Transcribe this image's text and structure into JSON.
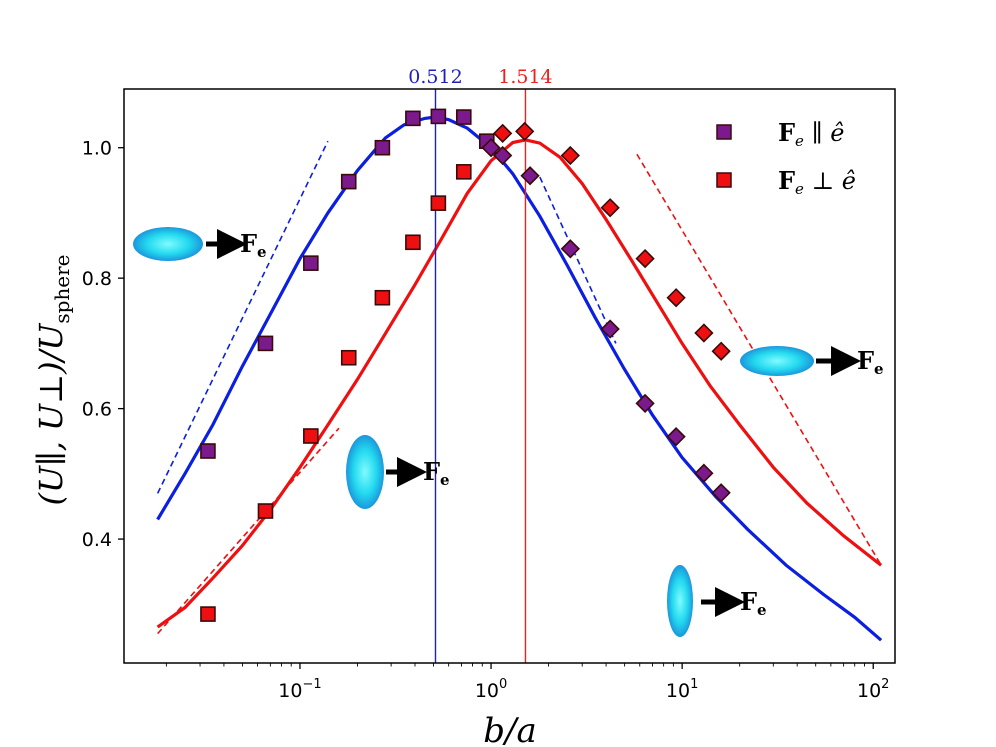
{
  "chart_data": {
    "type": "scatter",
    "x_scale": "log",
    "xlim": [
      0.012,
      130
    ],
    "ylim": [
      0.21,
      1.09
    ],
    "xlabel": "b/a",
    "ylabel": "(U∥, U⊥)/U_sphere",
    "x_ticks": [
      {
        "value": 0.1,
        "base": "10",
        "exp": "−1"
      },
      {
        "value": 1,
        "base": "10",
        "exp": "0"
      },
      {
        "value": 10,
        "base": "10",
        "exp": "1"
      },
      {
        "value": 100,
        "base": "10",
        "exp": "2"
      }
    ],
    "y_ticks": [
      {
        "value": 0.4,
        "label": "0.4"
      },
      {
        "value": 0.6,
        "label": "0.6"
      },
      {
        "value": 0.8,
        "label": "0.8"
      },
      {
        "value": 1.0,
        "label": "1.0"
      }
    ],
    "vlines": [
      {
        "x": 0.512,
        "label": "0.512",
        "color": "#1f1fbf"
      },
      {
        "x": 1.514,
        "label": "1.514",
        "color": "#ee2020"
      }
    ],
    "legend": {
      "position": "top-right",
      "entries": [
        {
          "series": "parallel",
          "label_bold": "F",
          "label_sub": "e",
          "label_rel": "∥",
          "label_vec": "ê"
        },
        {
          "series": "perpendicular",
          "label_bold": "F",
          "label_sub": "e",
          "label_rel": "⊥",
          "label_vec": "ê"
        }
      ]
    },
    "series": [
      {
        "name": "parallel",
        "color": "#0b1fe0",
        "marker_fill": "#7a1a8c",
        "curve": {
          "x": [
            0.018,
            0.025,
            0.035,
            0.05,
            0.07,
            0.1,
            0.14,
            0.2,
            0.28,
            0.35,
            0.45,
            0.512,
            0.6,
            0.75,
            1.0,
            1.3,
            1.8,
            2.5,
            3.5,
            5,
            7,
            10,
            15,
            22,
            35,
            55,
            80,
            110
          ],
          "y": [
            0.43,
            0.5,
            0.575,
            0.665,
            0.745,
            0.83,
            0.9,
            0.965,
            1.015,
            1.035,
            1.045,
            1.047,
            1.043,
            1.03,
            1.0,
            0.96,
            0.895,
            0.82,
            0.74,
            0.66,
            0.59,
            0.525,
            0.465,
            0.415,
            0.36,
            0.315,
            0.28,
            0.245
          ]
        },
        "asymptote_low": {
          "x": [
            0.018,
            0.14
          ],
          "y": [
            0.47,
            1.01
          ]
        },
        "asymptote_high": {
          "x": [
            1.8,
            4.5
          ],
          "y": [
            0.955,
            0.7
          ]
        },
        "points": [
          {
            "marker": "square",
            "x": 0.033,
            "y": 0.535
          },
          {
            "marker": "square",
            "x": 0.066,
            "y": 0.7
          },
          {
            "marker": "square",
            "x": 0.114,
            "y": 0.823
          },
          {
            "marker": "square",
            "x": 0.18,
            "y": 0.948
          },
          {
            "marker": "square",
            "x": 0.27,
            "y": 1.0
          },
          {
            "marker": "square",
            "x": 0.39,
            "y": 1.045
          },
          {
            "marker": "square",
            "x": 0.53,
            "y": 1.048
          },
          {
            "marker": "square",
            "x": 0.72,
            "y": 1.047
          },
          {
            "marker": "square",
            "x": 0.95,
            "y": 1.01
          },
          {
            "marker": "diamond",
            "x": 1.0,
            "y": 1.0
          },
          {
            "marker": "diamond",
            "x": 1.15,
            "y": 0.988
          },
          {
            "marker": "diamond",
            "x": 1.6,
            "y": 0.957
          },
          {
            "marker": "diamond",
            "x": 2.6,
            "y": 0.845
          },
          {
            "marker": "diamond",
            "x": 4.2,
            "y": 0.722
          },
          {
            "marker": "diamond",
            "x": 6.4,
            "y": 0.608
          },
          {
            "marker": "diamond",
            "x": 9.3,
            "y": 0.557
          },
          {
            "marker": "diamond",
            "x": 13,
            "y": 0.501
          },
          {
            "marker": "diamond",
            "x": 16,
            "y": 0.471
          }
        ]
      },
      {
        "name": "perpendicular",
        "color": "#ee1010",
        "marker_fill": "#ee1010",
        "curve": {
          "x": [
            0.018,
            0.025,
            0.035,
            0.05,
            0.07,
            0.1,
            0.14,
            0.2,
            0.28,
            0.4,
            0.55,
            0.75,
            1.0,
            1.3,
            1.514,
            1.8,
            2.3,
            3,
            4,
            5.5,
            7.5,
            10,
            14,
            20,
            30,
            45,
            70,
            110
          ],
          "y": [
            0.265,
            0.295,
            0.34,
            0.39,
            0.445,
            0.51,
            0.575,
            0.645,
            0.715,
            0.79,
            0.86,
            0.93,
            0.98,
            1.008,
            1.012,
            1.007,
            0.985,
            0.945,
            0.89,
            0.825,
            0.76,
            0.7,
            0.635,
            0.575,
            0.51,
            0.455,
            0.405,
            0.36
          ]
        },
        "asymptote_low": {
          "x": [
            0.018,
            0.16
          ],
          "y": [
            0.255,
            0.57
          ]
        },
        "asymptote_high": {
          "x": [
            5.8,
            110
          ],
          "y": [
            0.99,
            0.36
          ]
        },
        "points": [
          {
            "marker": "square",
            "x": 0.033,
            "y": 0.285
          },
          {
            "marker": "square",
            "x": 0.066,
            "y": 0.443
          },
          {
            "marker": "square",
            "x": 0.114,
            "y": 0.558
          },
          {
            "marker": "square",
            "x": 0.18,
            "y": 0.678
          },
          {
            "marker": "square",
            "x": 0.27,
            "y": 0.77
          },
          {
            "marker": "square",
            "x": 0.39,
            "y": 0.855
          },
          {
            "marker": "square",
            "x": 0.53,
            "y": 0.915
          },
          {
            "marker": "square",
            "x": 0.72,
            "y": 0.963
          },
          {
            "marker": "diamond",
            "x": 1.15,
            "y": 1.022
          },
          {
            "marker": "diamond",
            "x": 1.5,
            "y": 1.025
          },
          {
            "marker": "diamond",
            "x": 2.6,
            "y": 0.988
          },
          {
            "marker": "diamond",
            "x": 4.2,
            "y": 0.908
          },
          {
            "marker": "diamond",
            "x": 6.4,
            "y": 0.83
          },
          {
            "marker": "diamond",
            "x": 9.3,
            "y": 0.77
          },
          {
            "marker": "diamond",
            "x": 13,
            "y": 0.716
          },
          {
            "marker": "diamond",
            "x": 16,
            "y": 0.688
          }
        ]
      }
    ],
    "annotations": [
      {
        "id": "parallel-oblate",
        "force": "F",
        "sub": "e"
      },
      {
        "id": "perpendicular-prolate",
        "force": "F",
        "sub": "e"
      },
      {
        "id": "perpendicular-oblate",
        "force": "F",
        "sub": "e"
      },
      {
        "id": "parallel-prolate",
        "force": "F",
        "sub": "e"
      }
    ]
  }
}
